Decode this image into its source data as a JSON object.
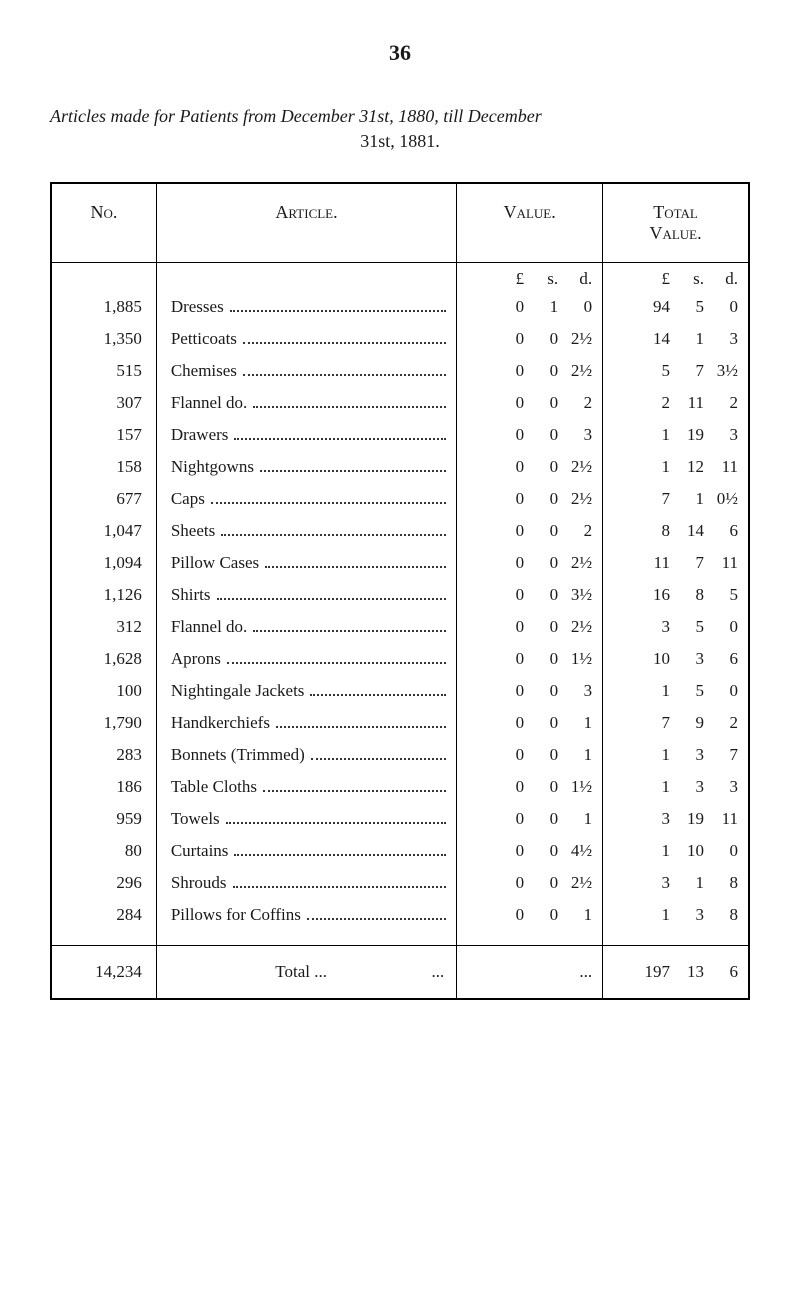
{
  "page_number": "36",
  "title_line1": "Articles made for Patients from December 31st, 1880, till December",
  "title_line2": "31st, 1881.",
  "headers": {
    "no": "No.",
    "article": "Article.",
    "value": "Value.",
    "total_value_l1": "Total",
    "total_value_l2": "Value."
  },
  "unit_header": {
    "L": "£",
    "s": "s.",
    "d": "d."
  },
  "rows": [
    {
      "no": "1,885",
      "article": "Dresses",
      "value": {
        "L": "0",
        "s": "1",
        "d": "0"
      },
      "total": {
        "L": "94",
        "s": "5",
        "d": "0"
      }
    },
    {
      "no": "1,350",
      "article": "Petticoats",
      "value": {
        "L": "0",
        "s": "0",
        "d": "2½"
      },
      "total": {
        "L": "14",
        "s": "1",
        "d": "3"
      }
    },
    {
      "no": "515",
      "article": "Chemises",
      "value": {
        "L": "0",
        "s": "0",
        "d": "2½"
      },
      "total": {
        "L": "5",
        "s": "7",
        "d": "3½"
      }
    },
    {
      "no": "307",
      "article": "Flannel do.",
      "value": {
        "L": "0",
        "s": "0",
        "d": "2"
      },
      "total": {
        "L": "2",
        "s": "11",
        "d": "2"
      }
    },
    {
      "no": "157",
      "article": "Drawers",
      "value": {
        "L": "0",
        "s": "0",
        "d": "3"
      },
      "total": {
        "L": "1",
        "s": "19",
        "d": "3"
      }
    },
    {
      "no": "158",
      "article": "Nightgowns",
      "value": {
        "L": "0",
        "s": "0",
        "d": "2½"
      },
      "total": {
        "L": "1",
        "s": "12",
        "d": "11"
      }
    },
    {
      "no": "677",
      "article": "Caps",
      "value": {
        "L": "0",
        "s": "0",
        "d": "2½"
      },
      "total": {
        "L": "7",
        "s": "1",
        "d": "0½"
      }
    },
    {
      "no": "1,047",
      "article": "Sheets",
      "value": {
        "L": "0",
        "s": "0",
        "d": "2"
      },
      "total": {
        "L": "8",
        "s": "14",
        "d": "6"
      }
    },
    {
      "no": "1,094",
      "article": "Pillow Cases",
      "value": {
        "L": "0",
        "s": "0",
        "d": "2½"
      },
      "total": {
        "L": "11",
        "s": "7",
        "d": "11"
      }
    },
    {
      "no": "1,126",
      "article": "Shirts",
      "value": {
        "L": "0",
        "s": "0",
        "d": "3½"
      },
      "total": {
        "L": "16",
        "s": "8",
        "d": "5"
      }
    },
    {
      "no": "312",
      "article": "Flannel do.",
      "value": {
        "L": "0",
        "s": "0",
        "d": "2½"
      },
      "total": {
        "L": "3",
        "s": "5",
        "d": "0"
      }
    },
    {
      "no": "1,628",
      "article": "Aprons",
      "value": {
        "L": "0",
        "s": "0",
        "d": "1½"
      },
      "total": {
        "L": "10",
        "s": "3",
        "d": "6"
      }
    },
    {
      "no": "100",
      "article": "Nightingale Jackets",
      "value": {
        "L": "0",
        "s": "0",
        "d": "3"
      },
      "total": {
        "L": "1",
        "s": "5",
        "d": "0"
      }
    },
    {
      "no": "1,790",
      "article": "Handkerchiefs",
      "value": {
        "L": "0",
        "s": "0",
        "d": "1"
      },
      "total": {
        "L": "7",
        "s": "9",
        "d": "2"
      }
    },
    {
      "no": "283",
      "article": "Bonnets (Trimmed)",
      "value": {
        "L": "0",
        "s": "0",
        "d": "1"
      },
      "total": {
        "L": "1",
        "s": "3",
        "d": "7"
      }
    },
    {
      "no": "186",
      "article": "Table Cloths",
      "value": {
        "L": "0",
        "s": "0",
        "d": "1½"
      },
      "total": {
        "L": "1",
        "s": "3",
        "d": "3"
      }
    },
    {
      "no": "959",
      "article": "Towels",
      "value": {
        "L": "0",
        "s": "0",
        "d": "1"
      },
      "total": {
        "L": "3",
        "s": "19",
        "d": "11"
      }
    },
    {
      "no": "80",
      "article": "Curtains",
      "value": {
        "L": "0",
        "s": "0",
        "d": "4½"
      },
      "total": {
        "L": "1",
        "s": "10",
        "d": "0"
      }
    },
    {
      "no": "296",
      "article": "Shrouds",
      "value": {
        "L": "0",
        "s": "0",
        "d": "2½"
      },
      "total": {
        "L": "3",
        "s": "1",
        "d": "8"
      }
    },
    {
      "no": "284",
      "article": "Pillows for Coffins",
      "value": {
        "L": "0",
        "s": "0",
        "d": "1"
      },
      "total": {
        "L": "1",
        "s": "3",
        "d": "8"
      }
    }
  ],
  "total_row": {
    "no": "14,234",
    "label": "Total",
    "value": "...",
    "total": {
      "L": "197",
      "s": "13",
      "d": "6"
    }
  }
}
